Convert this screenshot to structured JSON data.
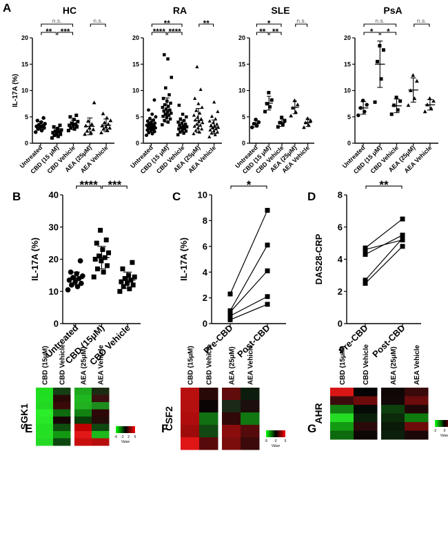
{
  "panel_letters": {
    "A": "A",
    "B": "B",
    "C": "C",
    "D": "D",
    "E": "E",
    "F": "F",
    "G": "G"
  },
  "chart_data": [
    {
      "id": "A-HC",
      "type": "scatter",
      "title": "HC",
      "ylabel": "IL-17A (%)",
      "ylim": [
        0,
        20
      ],
      "yticks": [
        0,
        5,
        10,
        15,
        20
      ],
      "categories": [
        "Untreated",
        "CBD (15 μM)",
        "CBD Vehicle",
        "AEA (25μM)",
        "AEA Vehicle"
      ],
      "markers": [
        "circle",
        "square",
        "square",
        "triangle",
        "triangle"
      ],
      "points": [
        [
          2.1,
          2.4,
          2.7,
          2.9,
          3.0,
          3.2,
          3.3,
          3.5,
          3.7,
          4.0,
          4.3,
          4.8
        ],
        [
          1.0,
          1.3,
          1.5,
          1.7,
          1.8,
          2.0,
          2.2,
          2.3,
          2.5,
          2.8,
          3.1,
          3.4
        ],
        [
          2.4,
          2.7,
          2.9,
          3.1,
          3.3,
          3.4,
          3.6,
          3.8,
          4.1,
          4.5,
          5.0,
          5.3
        ],
        [
          1.7,
          2.0,
          2.3,
          2.6,
          2.9,
          3.3,
          3.6,
          4.2,
          7.7
        ],
        [
          2.0,
          2.4,
          2.7,
          2.9,
          3.1,
          3.3,
          3.6,
          3.9,
          4.3,
          4.8,
          5.6
        ]
      ],
      "means": [
        3.3,
        2.1,
        3.5,
        3.2,
        3.4
      ],
      "sds": [
        0.8,
        0.7,
        0.9,
        1.6,
        1.2
      ],
      "significance": [
        {
          "from": 0,
          "to": 1,
          "label": "**",
          "level": 1
        },
        {
          "from": 1,
          "to": 2,
          "label": "***",
          "level": 1
        },
        {
          "from": 0,
          "to": 2,
          "label": "n.s.",
          "level": 2
        },
        {
          "from": 3,
          "to": 4,
          "label": "n.s.",
          "level": 2
        }
      ]
    },
    {
      "id": "A-RA",
      "type": "scatter",
      "title": "RA",
      "ylabel": "",
      "ylim": [
        0,
        20
      ],
      "yticks": [
        0,
        5,
        10,
        15,
        20
      ],
      "categories": [
        "Untreated",
        "CBD (15 μM)",
        "CBD Vehicle",
        "AEA (25μM)",
        "AEA Vehicle"
      ],
      "markers": [
        "circle",
        "square",
        "square",
        "triangle",
        "triangle"
      ],
      "points": [
        [
          1.5,
          1.8,
          2.0,
          2.2,
          2.4,
          2.5,
          2.6,
          2.8,
          2.9,
          3.0,
          3.1,
          3.2,
          3.3,
          3.4,
          3.5,
          3.7,
          3.8,
          4.0,
          4.2,
          4.4,
          4.7,
          5.0,
          5.5,
          6.3,
          8.2
        ],
        [
          3.5,
          4.0,
          4.3,
          4.6,
          4.9,
          5.1,
          5.3,
          5.5,
          5.7,
          5.9,
          6.1,
          6.3,
          6.5,
          6.8,
          7.0,
          7.3,
          7.6,
          8.0,
          8.5,
          9.2,
          10.5,
          12.5,
          16.0,
          16.8
        ],
        [
          1.6,
          1.9,
          2.1,
          2.3,
          2.5,
          2.7,
          2.8,
          3.0,
          3.1,
          3.3,
          3.4,
          3.6,
          3.8,
          4.0,
          4.3,
          4.6,
          5.0,
          5.5,
          7.2
        ],
        [
          1.8,
          2.1,
          2.4,
          2.7,
          2.9,
          3.2,
          3.4,
          3.6,
          3.9,
          4.1,
          4.4,
          4.6,
          4.9,
          5.3,
          5.7,
          6.2,
          6.8,
          7.5,
          8.5,
          10.2,
          14.5
        ],
        [
          1.2,
          1.6,
          1.9,
          2.1,
          2.3,
          2.5,
          2.7,
          2.9,
          3.0,
          3.2,
          3.4,
          3.6,
          3.9,
          4.2,
          4.6,
          5.1,
          6.0,
          7.8
        ]
      ],
      "means": [
        3.3,
        6.3,
        3.2,
        4.3,
        3.1
      ],
      "sds": [
        1.2,
        2.3,
        1.1,
        2.3,
        1.3
      ],
      "significance": [
        {
          "from": 0,
          "to": 1,
          "label": "****",
          "level": 1
        },
        {
          "from": 1,
          "to": 2,
          "label": "****",
          "level": 1
        },
        {
          "from": 0,
          "to": 2,
          "label": "**",
          "level": 2
        },
        {
          "from": 3,
          "to": 4,
          "label": "**",
          "level": 2
        }
      ]
    },
    {
      "id": "A-SLE",
      "type": "scatter",
      "title": "SLE",
      "ylabel": "",
      "ylim": [
        0,
        20
      ],
      "yticks": [
        0,
        5,
        10,
        15,
        20
      ],
      "categories": [
        "Untreated",
        "CBD (15 μM)",
        "CBD Vehicle",
        "AEA (25μM)",
        "AEA Vehicle"
      ],
      "markers": [
        "circle",
        "square",
        "square",
        "triangle",
        "triangle"
      ],
      "points": [
        [
          3.0,
          3.3,
          3.7,
          4.0,
          4.5
        ],
        [
          6.0,
          6.9,
          7.5,
          8.2,
          9.6
        ],
        [
          3.1,
          3.5,
          3.9,
          4.3,
          4.9
        ],
        [
          5.2,
          5.9,
          6.7,
          7.3,
          8.1
        ],
        [
          3.0,
          3.4,
          3.9,
          4.3,
          4.7
        ]
      ],
      "means": [
        3.7,
        7.6,
        3.9,
        6.8,
        3.9
      ],
      "sds": [
        0.6,
        1.3,
        0.7,
        1.2,
        0.7
      ],
      "significance": [
        {
          "from": 0,
          "to": 1,
          "label": "**",
          "level": 1
        },
        {
          "from": 1,
          "to": 2,
          "label": "**",
          "level": 1
        },
        {
          "from": 0,
          "to": 2,
          "label": "*",
          "level": 2
        },
        {
          "from": 3,
          "to": 4,
          "label": "n.s.",
          "level": 2
        }
      ]
    },
    {
      "id": "A-PsA",
      "type": "scatter",
      "title": "PsA",
      "ylabel": "",
      "ylim": [
        0,
        20
      ],
      "yticks": [
        0,
        5,
        10,
        15,
        20
      ],
      "categories": [
        "Untreated",
        "CBD (15 μM)",
        "CBD Vehicle",
        "AEA (25μM)",
        "AEA Vehicle"
      ],
      "markers": [
        "circle",
        "square",
        "square",
        "triangle",
        "triangle"
      ],
      "points": [
        [
          5.3,
          6.0,
          6.7,
          7.3,
          8.1
        ],
        [
          7.8,
          12.2,
          15.5,
          17.7,
          18.5
        ],
        [
          5.5,
          6.3,
          7.2,
          8.0,
          8.7
        ],
        [
          7.2,
          8.5,
          10.0,
          11.8,
          12.9
        ],
        [
          6.0,
          6.6,
          7.3,
          8.0,
          8.5
        ]
      ],
      "means": [
        6.7,
        15.0,
        7.1,
        10.1,
        7.3
      ],
      "sds": [
        1.2,
        4.4,
        1.3,
        2.3,
        1.0
      ],
      "significance": [
        {
          "from": 0,
          "to": 1,
          "label": "*",
          "level": 1
        },
        {
          "from": 1,
          "to": 2,
          "label": "*",
          "level": 1
        },
        {
          "from": 0,
          "to": 2,
          "label": "n.s.",
          "level": 2
        },
        {
          "from": 3,
          "to": 4,
          "label": "n.s.",
          "level": 2
        }
      ]
    },
    {
      "id": "B",
      "type": "scatter",
      "title": "",
      "ylabel": "IL-17A (%)",
      "ylim": [
        0,
        40
      ],
      "yticks": [
        0,
        10,
        20,
        30,
        40
      ],
      "categories": [
        "Untreated",
        "CBD (15μM)",
        "CBD Vehicle"
      ],
      "markers": [
        "circle",
        "square",
        "square"
      ],
      "points": [
        [
          10.5,
          11.5,
          12.0,
          12.5,
          13.0,
          13.5,
          14.0,
          14.3,
          14.8,
          15.5,
          16.0,
          19.5
        ],
        [
          14.5,
          16.0,
          17.0,
          18.0,
          19.5,
          20.0,
          20.5,
          21.0,
          22.0,
          23.0,
          25.0,
          26.0,
          29.0
        ],
        [
          10.0,
          10.8,
          11.5,
          12.0,
          12.5,
          13.0,
          13.5,
          14.0,
          14.5,
          15.0,
          17.0,
          19.0
        ]
      ],
      "means": [
        14.0,
        20.5,
        13.5
      ],
      "sds": [
        2.0,
        3.5,
        2.5
      ],
      "significance": [
        {
          "from": 0,
          "to": 1,
          "label": "****",
          "level": 1
        },
        {
          "from": 1,
          "to": 2,
          "label": "***",
          "level": 1
        }
      ]
    },
    {
      "id": "C",
      "type": "line",
      "title": "",
      "ylabel": "IL-17A (%)",
      "ylim": [
        0,
        10
      ],
      "yticks": [
        0,
        2,
        4,
        6,
        8,
        10
      ],
      "categories": [
        "Pre-CBD",
        "Post-CBD"
      ],
      "pairs": [
        [
          0.3,
          1.5
        ],
        [
          0.6,
          2.1
        ],
        [
          0.9,
          4.1
        ],
        [
          1.0,
          6.1
        ],
        [
          2.3,
          8.8
        ]
      ],
      "significance": [
        {
          "from": 0,
          "to": 1,
          "label": "*",
          "level": 1
        }
      ]
    },
    {
      "id": "D",
      "type": "line",
      "title": "",
      "ylabel": "DAS28-CRP",
      "ylim": [
        0,
        8
      ],
      "yticks": [
        0,
        2,
        4,
        6,
        8
      ],
      "categories": [
        "Pre-CBD",
        "Post-CBD"
      ],
      "pairs": [
        [
          2.5,
          4.8
        ],
        [
          2.7,
          5.3
        ],
        [
          4.3,
          5.5
        ],
        [
          4.6,
          5.2
        ],
        [
          4.7,
          6.5
        ]
      ],
      "significance": [
        {
          "from": 0,
          "to": 1,
          "label": "**",
          "level": 1
        }
      ]
    },
    {
      "id": "E",
      "type": "heatmap",
      "gene": "SGK1",
      "groups": [
        {
          "columns": [
            "CBD (15μM)",
            "CBD Vehicle"
          ],
          "colors": [
            [
              "#1FDD1F",
              "#153F15"
            ],
            [
              "#22DE22",
              "#2A0808"
            ],
            [
              "#23D823",
              "#3A0A0A"
            ],
            [
              "#2BEE2B",
              "#0E6B0E"
            ],
            [
              "#28E828",
              "#160606"
            ],
            [
              "#24E024",
              "#0E4E0E"
            ],
            [
              "#26E026",
              "#129812"
            ],
            [
              "#25DA25",
              "#0E4810"
            ]
          ]
        },
        {
          "columns": [
            "AEA (25μM)",
            "AEA Vehicle"
          ],
          "colors": [
            [
              "#1DA81D",
              "#1C2C12"
            ],
            [
              "#1FB71F",
              "#3A1010"
            ],
            [
              "#20B020",
              "#1C8C1C"
            ],
            [
              "#118211",
              "#2E0808"
            ],
            [
              "#093D09",
              "#260B0B"
            ],
            [
              "#C00000",
              "#0F4710"
            ],
            [
              "#E21818",
              "#1CBA1C"
            ],
            [
              "#C90E0E",
              "#B80D0D"
            ]
          ]
        }
      ],
      "colorbar_ticks": [
        "-6",
        "-2",
        "2",
        "6"
      ],
      "colorbar_label": "Value"
    },
    {
      "id": "F",
      "type": "heatmap",
      "gene": "CSF2",
      "groups": [
        {
          "columns": [
            "CBD (15μM)",
            "CBD Vehicle"
          ],
          "colors": [
            [
              "#B80F0F",
              "#290808"
            ],
            [
              "#B41010",
              "#0B0404"
            ],
            [
              "#AF0D0D",
              "#117011"
            ],
            [
              "#9E0B0B",
              "#124812"
            ],
            [
              "#E01515",
              "#580A0A"
            ]
          ]
        },
        {
          "columns": [
            "AEA (25μM)",
            "AEA Vehicle"
          ],
          "colors": [
            [
              "#600C0C",
              "#0D1D0D"
            ],
            [
              "#1B2A18",
              "#1C0E0C"
            ],
            [
              "#310808",
              "#117811"
            ],
            [
              "#8A0C0C",
              "#550B0B"
            ],
            [
              "#7B0D0D",
              "#3C0A0A"
            ]
          ]
        }
      ],
      "colorbar_ticks": [
        "-5",
        "0",
        "5"
      ],
      "colorbar_label": "Value"
    },
    {
      "id": "G",
      "type": "heatmap",
      "gene": "AHR",
      "groups": [
        {
          "columns": [
            "CBD (15μM)",
            "CBD Vehicle"
          ],
          "colors": [
            [
              "#D81616",
              "#040404"
            ],
            [
              "#3C0C0C",
              "#6D0B0B"
            ],
            [
              "#128012",
              "#060A06"
            ],
            [
              "#25DC25",
              "#0B1F0B"
            ],
            [
              "#139A13",
              "#2A0A0A"
            ],
            [
              "#0D6B0D",
              "#0F0606"
            ]
          ]
        },
        {
          "columns": [
            "AEA (25μM)",
            "AEA Vehicle"
          ],
          "colors": [
            [
              "#0F0606",
              "#3A0A0A"
            ],
            [
              "#120808",
              "#6B0B0B"
            ],
            [
              "#0D400D",
              "#200707"
            ],
            [
              "#0A2A0A",
              "#0F7B0F"
            ],
            [
              "#091A09",
              "#6D0B0B"
            ],
            [
              "#0C1E0C",
              "#1A0808"
            ]
          ]
        }
      ],
      "colorbar_ticks": [
        "-2",
        "0",
        "2"
      ],
      "colorbar_label": "Value"
    }
  ]
}
